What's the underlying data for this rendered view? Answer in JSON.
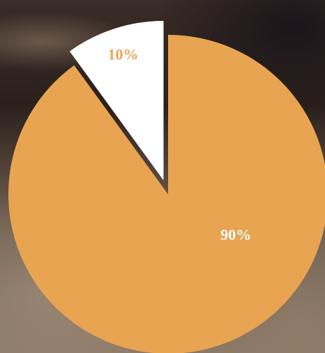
{
  "chart_data": {
    "type": "pie",
    "values": [
      90,
      10
    ],
    "value_labels": [
      "90%",
      "10%"
    ],
    "colors": [
      "#e9a451",
      "#ffffff"
    ],
    "label_colors": [
      "#ffffff",
      "#e9a451"
    ],
    "exploded": [
      false,
      true
    ]
  }
}
